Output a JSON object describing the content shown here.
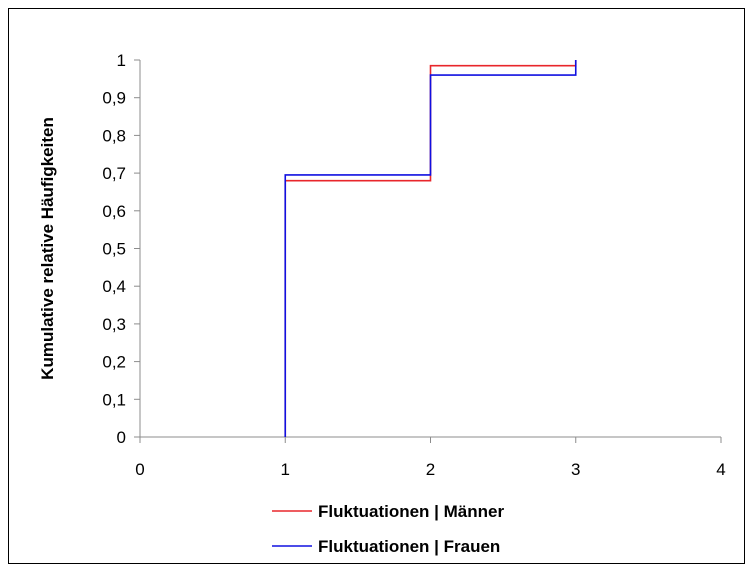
{
  "chart_data": {
    "type": "line",
    "step": true,
    "ylabel": "Kumulative relative Häufigkeiten",
    "xlabel": "",
    "xlim": [
      0,
      4
    ],
    "ylim": [
      0,
      1
    ],
    "xticks": [
      0,
      1,
      2,
      3,
      4
    ],
    "yticks": [
      0,
      0.1,
      0.2,
      0.3,
      0.4,
      0.5,
      0.6,
      0.7,
      0.8,
      0.9,
      1
    ],
    "xtick_labels": [
      "0",
      "1",
      "2",
      "3",
      "4"
    ],
    "ytick_labels": [
      "0",
      "0,1",
      "0,2",
      "0,3",
      "0,4",
      "0,5",
      "0,6",
      "0,7",
      "0,8",
      "0,9",
      "1"
    ],
    "grid": false,
    "legend_position": "bottom",
    "series": [
      {
        "name": "Fluktuationen | Männer",
        "color": "#e8262b",
        "x": [
          1,
          1,
          2,
          2,
          3,
          3
        ],
        "y": [
          0,
          0.68,
          0.68,
          0.985,
          0.985,
          1
        ]
      },
      {
        "name": "Fluktuationen | Frauen",
        "color": "#1010e0",
        "x": [
          1,
          1,
          2,
          2,
          3,
          3
        ],
        "y": [
          0,
          0.695,
          0.695,
          0.96,
          0.96,
          1
        ]
      }
    ]
  }
}
